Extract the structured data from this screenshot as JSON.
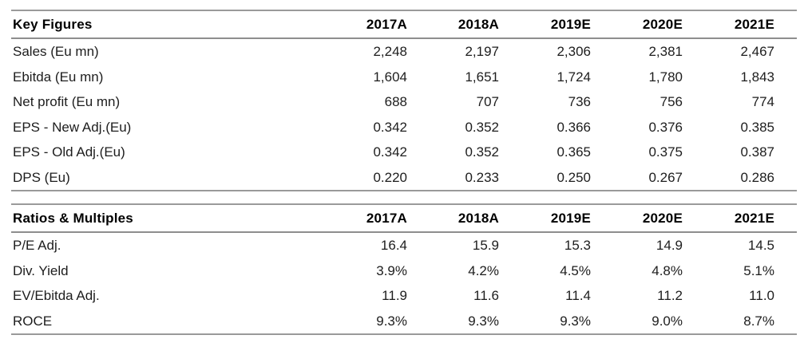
{
  "chart_data": [
    {
      "type": "table",
      "title": "Key Figures",
      "columns": [
        "2017A",
        "2018A",
        "2019E",
        "2020E",
        "2021E"
      ],
      "rows": [
        {
          "label": "Sales (Eu mn)",
          "values": [
            "2,248",
            "2,197",
            "2,306",
            "2,381",
            "2,467"
          ]
        },
        {
          "label": "Ebitda (Eu mn)",
          "values": [
            "1,604",
            "1,651",
            "1,724",
            "1,780",
            "1,843"
          ]
        },
        {
          "label": "Net profit (Eu mn)",
          "values": [
            "688",
            "707",
            "736",
            "756",
            "774"
          ]
        },
        {
          "label": "EPS - New Adj.(Eu)",
          "values": [
            "0.342",
            "0.352",
            "0.366",
            "0.376",
            "0.385"
          ]
        },
        {
          "label": "EPS - Old Adj.(Eu)",
          "values": [
            "0.342",
            "0.352",
            "0.365",
            "0.375",
            "0.387"
          ]
        },
        {
          "label": "DPS (Eu)",
          "values": [
            "0.220",
            "0.233",
            "0.250",
            "0.267",
            "0.286"
          ]
        }
      ]
    },
    {
      "type": "table",
      "title": "Ratios & Multiples",
      "columns": [
        "2017A",
        "2018A",
        "2019E",
        "2020E",
        "2021E"
      ],
      "rows": [
        {
          "label": "P/E Adj.",
          "values": [
            "16.4",
            "15.9",
            "15.3",
            "14.9",
            "14.5"
          ]
        },
        {
          "label": "Div. Yield",
          "values": [
            "3.9%",
            "4.2%",
            "4.5%",
            "4.8%",
            "5.1%"
          ]
        },
        {
          "label": "EV/Ebitda Adj.",
          "values": [
            "11.9",
            "11.6",
            "11.4",
            "11.2",
            "11.0"
          ]
        },
        {
          "label": "ROCE",
          "values": [
            "9.3%",
            "9.3%",
            "9.3%",
            "9.0%",
            "8.7%"
          ]
        }
      ]
    }
  ],
  "colors": {
    "rule": "#9a9a9a",
    "header_text": "#000000",
    "body_text": "#1d1d1d",
    "background": "#ffffff"
  }
}
